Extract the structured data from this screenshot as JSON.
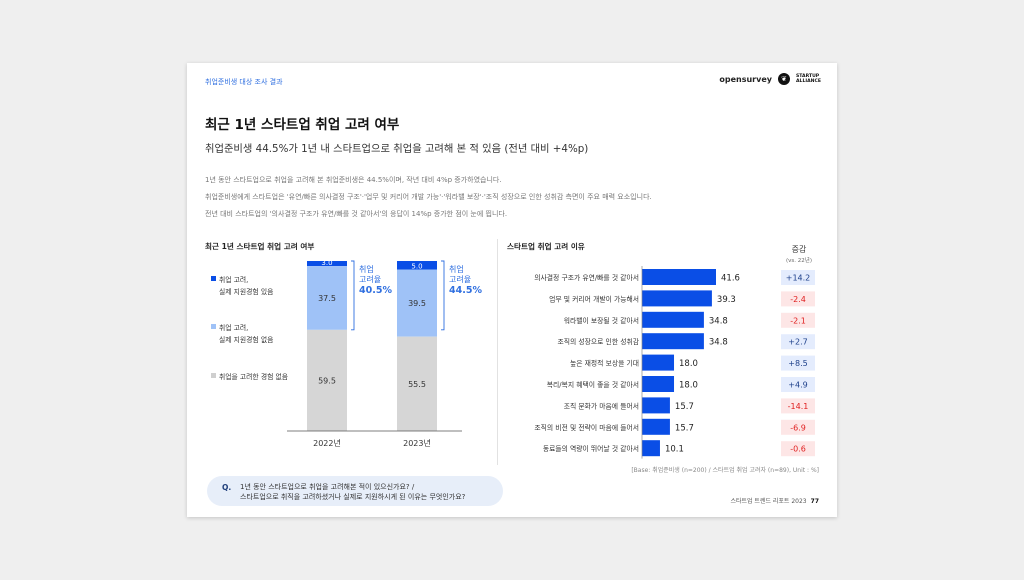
{
  "header": {
    "section_tag": "취업준비생 대상 조사 결과",
    "brand_left": "opensurvey",
    "brand_right_line1": "STARTUP",
    "brand_right_line2": "ALLIANCE"
  },
  "title": "최근 1년 스타트업 취업 고려 여부",
  "subtitle": "취업준비생 44.5%가 1년 내 스타트업으로 취업을 고려해 본 적 있음 (전년 대비 +4%p)",
  "description": [
    "1년 동안 스타트업으로 취업을 고려해 본 취업준비생은 44.5%이며, 작년 대비 4%p 증가하였습니다.",
    "취업준비생에게 스타트업은 '유연/빠른 의사결정 구조'·'업무 및 커리어 개발 가능'·'워라밸 보장'·'조직 성장으로 인한 성취감 측면이 주요 매력 요소입니다.",
    "전년 대비 스타트업의 '의사결정 구조가 유연/빠를 것 같아서'의 응답이 14%p 증가한 점이 눈에 띕니다."
  ],
  "colors": {
    "accent": "#2f6fe0",
    "dark_blue": "#0a4ee6",
    "light_blue": "#9fc2f7",
    "gray": "#d6d6d6",
    "positive_bg": "#e4ecfd",
    "negative_bg": "#fde6e6",
    "negative_text": "#e02020"
  },
  "chart_data": [
    {
      "type": "bar",
      "stacked": true,
      "title": "최근 1년 스타트업 취업 고려 여부",
      "categories": [
        "2022년",
        "2023년"
      ],
      "series": [
        {
          "name": "취업 고려, 실제 지원경험 있음",
          "values": [
            3.0,
            5.0
          ],
          "color": "#0a4ee6"
        },
        {
          "name": "취업 고려, 실제 지원경험 없음",
          "values": [
            37.5,
            39.5
          ],
          "color": "#9fc2f7"
        },
        {
          "name": "취업을 고려한 경험 없음",
          "values": [
            59.5,
            55.5
          ],
          "color": "#d6d6d6"
        }
      ],
      "value_labels": [
        [
          "3.0",
          "37.5",
          "59.5"
        ],
        [
          "5.0",
          "39.5",
          "55.5"
        ]
      ],
      "legend": [
        {
          "line1": "취업 고려,",
          "line2": "실제 지원경험 있음",
          "color": "#0a4ee6"
        },
        {
          "line1": "취업 고려,",
          "line2": "실제 지원경험 없음",
          "color": "#9fc2f7"
        },
        {
          "line1": "취업을 고려한 경험 없음",
          "line2": "",
          "color": "#d6d6d6"
        }
      ],
      "legend_position": "left",
      "consideration_rate": {
        "label_line1": "취업",
        "label_line2": "고려율",
        "values": [
          "40.5%",
          "44.5%"
        ]
      },
      "ylim": [
        0,
        100
      ]
    },
    {
      "type": "bar",
      "orientation": "horizontal",
      "title": "스타트업 취업 고려 이유",
      "categories": [
        "의사결정 구조가 유연/빠를 것 같아서",
        "업무 및 커리어 개발이 가능해서",
        "워라밸이 보장될 것 같아서",
        "조직의 성장으로 인한 성취감",
        "높은 재정적 보상을 기대",
        "복리/복지 혜택이 좋을 것 같아서",
        "조직 문화가 마음에 들어서",
        "조직의 비전 및 전략이 마음에 들어서",
        "동료들의 역량이 뛰어날 것 같아서"
      ],
      "values": [
        41.6,
        39.3,
        34.8,
        34.8,
        18.0,
        18.0,
        15.7,
        15.7,
        10.1
      ],
      "value_labels": [
        "41.6",
        "39.3",
        "34.8",
        "34.8",
        "18.0",
        "18.0",
        "15.7",
        "15.7",
        "10.1"
      ],
      "xlim": [
        0,
        50
      ],
      "changes": [
        "+14.2",
        "-2.4",
        "-2.1",
        "+2.7",
        "+8.5",
        "+4.9",
        "-14.1",
        "-6.9",
        "-0.6"
      ],
      "change_header": "증감",
      "change_subheader": "(vs. 22년)",
      "color": "#0a4ee6"
    }
  ],
  "base_note": "[Base: 취업준비생 (n=200) / 스타트업 취업 고려자 (n=89), Unit : %]",
  "question": {
    "mark": "Q.",
    "line1": "1년 동안 스타트업으로 취업을 고려해본 적이 있으신가요? /",
    "line2": "스타트업으로 취직을 고려하셨거나 실제로 지원하시게 된 이유는 무엇인가요?"
  },
  "footer": {
    "report": "스타트업 트렌드 리포트 2023",
    "page": "77"
  }
}
